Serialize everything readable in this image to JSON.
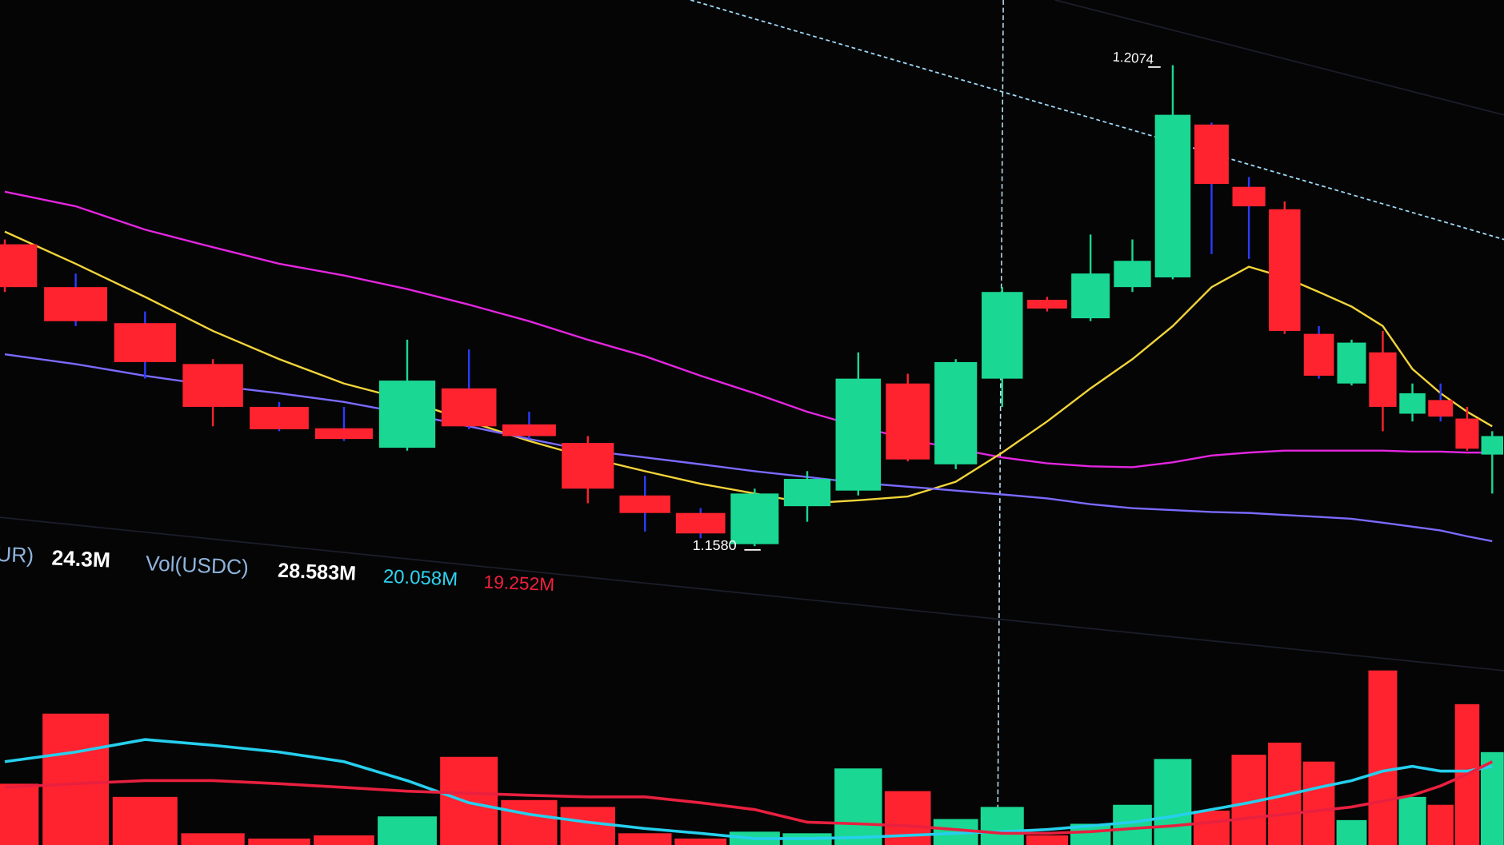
{
  "chart_data": {
    "type": "candlestick",
    "up_color": "#1ad893",
    "down_color": "#ff2330",
    "open": [
      1.189,
      1.1846,
      1.1809,
      1.1767,
      1.1723,
      1.1701,
      1.1681,
      1.1742,
      1.1705,
      1.1686,
      1.1632,
      1.1614,
      1.1582,
      1.1621,
      1.1637,
      1.1747,
      1.1664,
      1.1752,
      1.1833,
      1.1814,
      1.1846,
      1.1856,
      1.2013,
      1.1949,
      1.1926,
      1.1798,
      1.1747,
      1.1779,
      1.1716,
      1.173,
      1.1711,
      1.1674
    ],
    "high": [
      1.1895,
      1.186,
      1.1821,
      1.1772,
      1.1728,
      1.1723,
      1.1792,
      1.1782,
      1.1718,
      1.1693,
      1.1652,
      1.1619,
      1.1639,
      1.1657,
      1.1779,
      1.1757,
      1.1772,
      1.1846,
      1.1836,
      1.19,
      1.1895,
      1.2074,
      1.2015,
      1.1959,
      1.1934,
      1.1806,
      1.1792,
      1.1801,
      1.1747,
      1.1747,
      1.1723,
      1.1698
    ],
    "low": [
      1.1841,
      1.1806,
      1.1752,
      1.1703,
      1.1698,
      1.1688,
      1.1678,
      1.17,
      1.169,
      1.1624,
      1.1595,
      1.1588,
      1.158,
      1.1605,
      1.1632,
      1.1667,
      1.1659,
      1.1723,
      1.1821,
      1.1811,
      1.1841,
      1.1854,
      1.188,
      1.1875,
      1.1798,
      1.1752,
      1.1745,
      1.1698,
      1.1708,
      1.1708,
      1.1678,
      1.1634
    ],
    "close": [
      1.1846,
      1.1811,
      1.1769,
      1.1723,
      1.17,
      1.169,
      1.175,
      1.1703,
      1.1693,
      1.1639,
      1.1614,
      1.1593,
      1.1634,
      1.1649,
      1.1752,
      1.1669,
      1.1769,
      1.1841,
      1.1824,
      1.186,
      1.1873,
      1.2023,
      1.1952,
      1.1929,
      1.1801,
      1.1755,
      1.1789,
      1.1723,
      1.1737,
      1.1713,
      1.168,
      1.1693
    ],
    "high_label": "1.2074",
    "low_label": "1.1580",
    "overlays": [
      {
        "color": "#e326e0",
        "values": [
          1.1944,
          1.1929,
          1.1905,
          1.1887,
          1.187,
          1.1858,
          1.1844,
          1.1828,
          1.1811,
          1.1792,
          1.1775,
          1.1755,
          1.1737,
          1.1718,
          1.1703,
          1.169,
          1.168,
          1.1671,
          1.1665,
          1.1662,
          1.1661,
          1.1666,
          1.1673,
          1.1676,
          1.1678,
          1.1678,
          1.1678,
          1.1678,
          1.1677,
          1.1677,
          1.1676,
          1.1676
        ]
      },
      {
        "color": "#f2d43a",
        "values": [
          1.1903,
          1.187,
          1.1836,
          1.1801,
          1.1772,
          1.1747,
          1.173,
          1.1708,
          1.1688,
          1.1671,
          1.1657,
          1.1644,
          1.1634,
          1.1624,
          1.1627,
          1.1631,
          1.1646,
          1.1676,
          1.1708,
          1.1742,
          1.1772,
          1.1806,
          1.1846,
          1.1867,
          1.1856,
          1.1841,
          1.1826,
          1.1806,
          1.1762,
          1.1737,
          1.1718,
          1.1703
        ]
      },
      {
        "color": "#7a6bff",
        "values": [
          1.1777,
          1.1767,
          1.1755,
          1.1745,
          1.1737,
          1.1728,
          1.1716,
          1.1703,
          1.169,
          1.1678,
          1.1671,
          1.1664,
          1.1657,
          1.1651,
          1.1645,
          1.1641,
          1.1637,
          1.1633,
          1.1629,
          1.1623,
          1.1619,
          1.1617,
          1.1615,
          1.1614,
          1.1612,
          1.161,
          1.1608,
          1.1604,
          1.16,
          1.1596,
          1.159,
          1.1585
        ]
      }
    ],
    "volume": [
      14.9,
      28.2,
      12.4,
      5.5,
      4.5,
      5.1,
      8.7,
      20.0,
      11.8,
      10.5,
      5.5,
      4.5,
      5.8,
      5.5,
      17.8,
      13.5,
      8.2,
      10.5,
      5.1,
      7.3,
      10.9,
      19.6,
      9.8,
      20.4,
      22.7,
      19.1,
      8.0,
      36.4,
      12.4,
      10.9,
      30.0,
      20.9
    ],
    "volume_overlays": [
      {
        "color": "#26cfee",
        "values": [
          19.1,
          20.9,
          23.3,
          22.2,
          20.9,
          19.1,
          15.5,
          11.3,
          9.1,
          7.6,
          6.4,
          5.5,
          4.5,
          4.5,
          4.7,
          5.1,
          5.5,
          5.8,
          6.2,
          6.9,
          7.6,
          8.7,
          10.0,
          11.3,
          12.7,
          14.2,
          15.5,
          17.3,
          18.2,
          17.3,
          17.3,
          18.2
        ]
      },
      {
        "color": "#e8203f",
        "values": [
          14.2,
          14.9,
          15.5,
          15.5,
          14.9,
          14.2,
          13.5,
          13.1,
          12.7,
          12.4,
          12.4,
          11.3,
          10.0,
          7.6,
          7.3,
          6.9,
          6.2,
          5.5,
          5.5,
          5.8,
          6.4,
          6.9,
          7.6,
          8.4,
          9.1,
          9.8,
          10.5,
          11.6,
          12.7,
          14.5,
          16.7,
          19.1
        ]
      }
    ],
    "legend": [
      "UR)",
      "24.3M",
      "Vol(USDC)",
      "28.583M",
      "20.058M",
      "19.252M"
    ],
    "legend_colors": [
      "#8fb4dd",
      "#ffffff",
      "#8fb4dd",
      "#ffffff",
      "#2fd3f0",
      "#f0203f"
    ]
  }
}
